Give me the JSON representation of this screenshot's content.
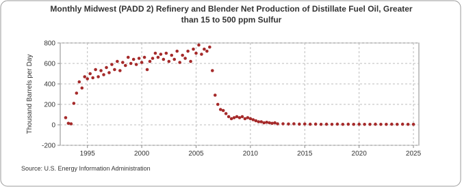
{
  "chart_data": {
    "type": "scatter",
    "title": "Monthly Midwest (PADD 2) Refinery and Blender Net Production of Distillate Fuel Oil, Greater",
    "subtitle": "than 15 to 500 ppm Sulfur",
    "y_label": "Thousand Barrels per Day",
    "source": "Source: U.S. Energy Information Administration",
    "color": "#a52a2a",
    "grid": true,
    "xlim": [
      1992.5,
      2025.5
    ],
    "xticks": [
      1995,
      2000,
      2005,
      2010,
      2015,
      2020,
      2025
    ],
    "ylim": [
      -200,
      800
    ],
    "yticks": [
      -200,
      0,
      200,
      400,
      600,
      800
    ],
    "x": [
      1993.0,
      1993.25,
      1993.5,
      1993.75,
      1994.0,
      1994.25,
      1994.5,
      1994.75,
      1995.0,
      1995.25,
      1995.5,
      1995.75,
      1996.0,
      1996.25,
      1996.5,
      1996.75,
      1997.0,
      1997.25,
      1997.5,
      1997.75,
      1998.0,
      1998.25,
      1998.5,
      1998.75,
      1999.0,
      1999.25,
      1999.5,
      1999.75,
      2000.0,
      2000.25,
      2000.5,
      2000.75,
      2001.0,
      2001.25,
      2001.5,
      2001.75,
      2002.0,
      2002.25,
      2002.5,
      2002.75,
      2003.0,
      2003.25,
      2003.5,
      2003.75,
      2004.0,
      2004.25,
      2004.5,
      2004.75,
      2005.0,
      2005.25,
      2005.5,
      2005.75,
      2006.0,
      2006.25,
      2006.5,
      2006.75,
      2007.0,
      2007.25,
      2007.5,
      2007.75,
      2008.0,
      2008.25,
      2008.5,
      2008.75,
      2009.0,
      2009.25,
      2009.5,
      2009.75,
      2010.0,
      2010.25,
      2010.5,
      2010.75,
      2011.0,
      2011.25,
      2011.5,
      2011.75,
      2012.0,
      2012.25,
      2012.5,
      2013.0,
      2013.5,
      2014.0,
      2014.5,
      2015.0,
      2015.5,
      2016.0,
      2016.5,
      2017.0,
      2017.5,
      2018.0,
      2018.5,
      2019.0,
      2019.5,
      2020.0,
      2020.5,
      2021.0,
      2021.5,
      2022.0,
      2022.5,
      2023.0,
      2023.5,
      2024.0,
      2024.5,
      2025.0
    ],
    "values": [
      70,
      15,
      10,
      210,
      310,
      420,
      360,
      470,
      450,
      500,
      460,
      540,
      470,
      530,
      490,
      560,
      510,
      590,
      540,
      620,
      530,
      610,
      580,
      660,
      600,
      640,
      590,
      650,
      610,
      660,
      540,
      620,
      650,
      700,
      660,
      690,
      640,
      700,
      620,
      680,
      640,
      720,
      610,
      680,
      650,
      720,
      620,
      740,
      700,
      780,
      690,
      740,
      720,
      760,
      530,
      290,
      200,
      150,
      140,
      110,
      80,
      60,
      70,
      80,
      70,
      80,
      60,
      70,
      60,
      50,
      40,
      30,
      30,
      20,
      25,
      20,
      15,
      20,
      10,
      10,
      8,
      10,
      7,
      8,
      6,
      7,
      5,
      6,
      5,
      7,
      5,
      6,
      5,
      6,
      5,
      5,
      6,
      5,
      5,
      6,
      5,
      6,
      5,
      5
    ]
  }
}
